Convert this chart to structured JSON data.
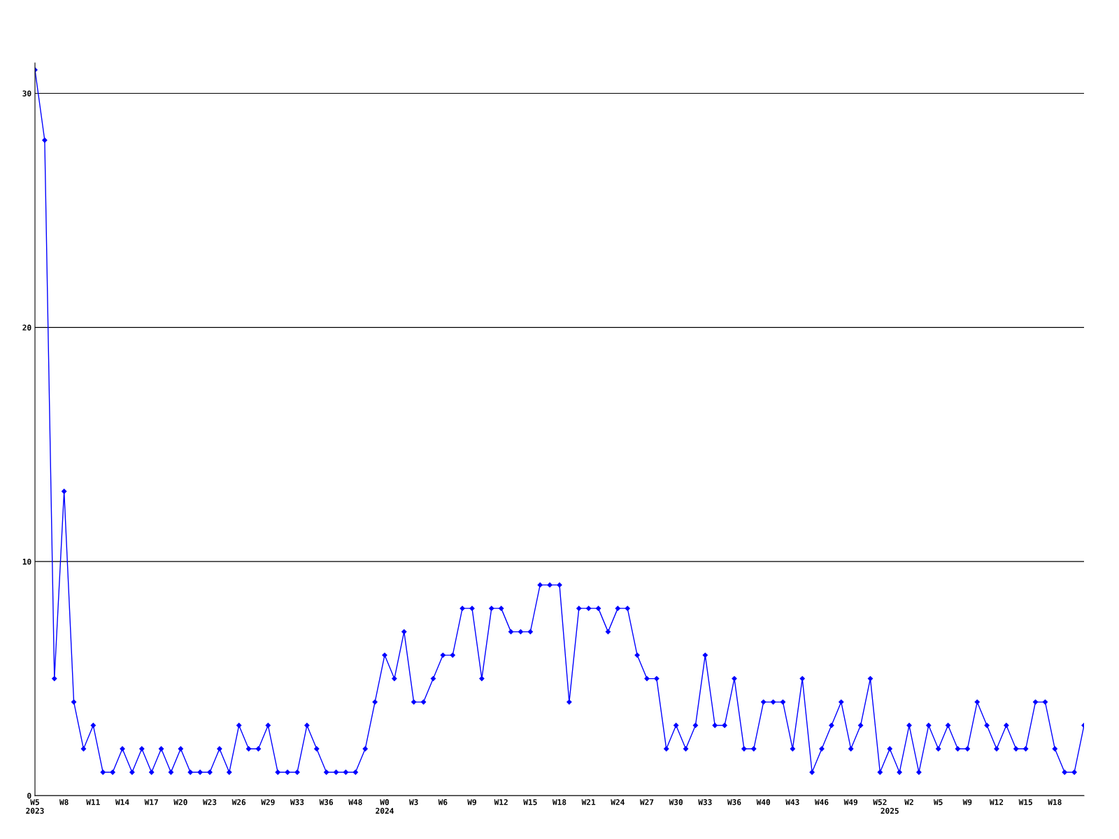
{
  "chart_data": {
    "type": "line",
    "categories": [
      "W5\n2023",
      null,
      null,
      "W8",
      null,
      null,
      "W11",
      null,
      null,
      "W14",
      null,
      null,
      "W17",
      null,
      null,
      "W20",
      null,
      null,
      "W23",
      null,
      null,
      "W26",
      null,
      null,
      "W29",
      null,
      null,
      "W33",
      null,
      null,
      "W36",
      null,
      null,
      "W48",
      null,
      null,
      "W0\n2024",
      null,
      null,
      "W3",
      null,
      null,
      "W6",
      null,
      null,
      "W9",
      null,
      null,
      "W12",
      null,
      null,
      "W15",
      null,
      null,
      "W18",
      null,
      null,
      "W21",
      null,
      null,
      "W24",
      null,
      null,
      "W27",
      null,
      null,
      "W30",
      null,
      null,
      "W33",
      null,
      null,
      "W36",
      null,
      null,
      "W40",
      null,
      null,
      "W43",
      null,
      null,
      "W46",
      null,
      null,
      "W49",
      null,
      null,
      "W52",
      "\n2025",
      null,
      "W2",
      null,
      null,
      "W5",
      null,
      null,
      "W9",
      null,
      null,
      "W12",
      null,
      null,
      "W15",
      null,
      null,
      "W18",
      null,
      null,
      null
    ],
    "series": [
      {
        "color": "#0000ff",
        "values": [
          31,
          28,
          5,
          13,
          4,
          2,
          3,
          1,
          1,
          2,
          1,
          2,
          1,
          2,
          1,
          2,
          1,
          1,
          1,
          2,
          1,
          3,
          2,
          2,
          3,
          1,
          1,
          1,
          3,
          2,
          1,
          1,
          1,
          1,
          2,
          4,
          6,
          5,
          7,
          4,
          4,
          5,
          6,
          6,
          8,
          8,
          5,
          8,
          8,
          7,
          7,
          7,
          9,
          9,
          9,
          4,
          8,
          8,
          8,
          7,
          8,
          8,
          6,
          5,
          5,
          2,
          3,
          2,
          3,
          6,
          3,
          3,
          5,
          2,
          2,
          4,
          4,
          4,
          2,
          5,
          1,
          2,
          3,
          4,
          2,
          3,
          5,
          1,
          2,
          1,
          3,
          1,
          3,
          2,
          3,
          2,
          2,
          4,
          3,
          2,
          3,
          2,
          2,
          4,
          4,
          2,
          1,
          1,
          3
        ]
      }
    ],
    "ylim": [
      0,
      31.3
    ],
    "yticks": [
      0,
      10,
      20,
      30
    ],
    "grid": "y",
    "marker": "diamond",
    "line_style": "solid",
    "legend": false
  }
}
